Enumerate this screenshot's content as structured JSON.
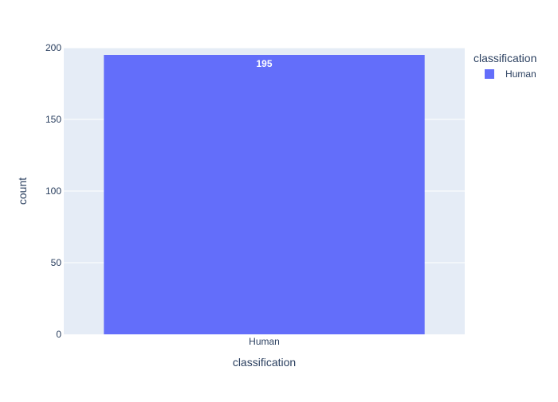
{
  "chart_data": {
    "type": "bar",
    "categories": [
      "Human"
    ],
    "series": [
      {
        "name": "Human",
        "values": [
          195
        ],
        "color": "#636efa"
      }
    ],
    "data_labels": [
      "195"
    ],
    "xlabel": "classification",
    "ylabel": "count",
    "ylim": [
      0,
      200
    ],
    "yticks": [
      0,
      50,
      100,
      150,
      200
    ],
    "legend": {
      "title": "classification",
      "position": "top-right"
    },
    "grid": true,
    "plot_background": "#e5ecf6"
  }
}
